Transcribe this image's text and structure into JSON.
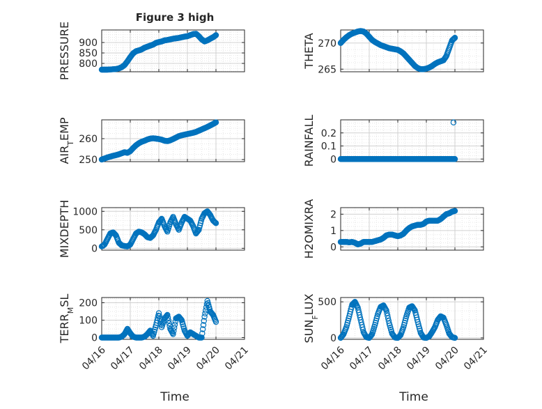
{
  "figure": {
    "title": "Figure 3 high",
    "xlabel": "Time"
  },
  "style": {
    "marker_color": "#0072BD",
    "axis_color": "#262626",
    "grid_color": "#d9d9d9",
    "background": "#ffffff"
  },
  "x_axis": {
    "tick_labels": [
      "04/16",
      "04/17",
      "04/18",
      "04/19",
      "04/20",
      "04/21"
    ],
    "tick_days": [
      0,
      1,
      2,
      3,
      4,
      5
    ],
    "range_days": [
      0,
      5
    ],
    "data_span_days": [
      0,
      4
    ]
  },
  "chart_data": [
    {
      "type": "scatter",
      "title": "Figure 3 high",
      "ylabel": "PRESSURE",
      "ylim": [
        760,
        960
      ],
      "yticks": [
        800,
        850,
        900
      ],
      "grid": true,
      "series": [
        {
          "x": [
            0,
            0.1,
            0.2,
            0.3,
            0.4,
            0.5,
            0.6,
            0.7,
            0.8,
            0.9,
            1.0,
            1.1,
            1.2,
            1.3,
            1.4,
            1.5,
            1.6,
            1.7,
            1.8,
            1.9,
            2.0,
            2.1,
            2.2,
            2.3,
            2.4,
            2.5,
            2.6,
            2.7,
            2.8,
            2.9,
            3.0,
            3.1,
            3.2,
            3.3,
            3.4,
            3.5,
            3.6,
            3.7,
            3.8,
            3.9,
            4.0
          ],
          "y": [
            770,
            770,
            770,
            771,
            772,
            773,
            776,
            782,
            792,
            810,
            830,
            848,
            858,
            862,
            867,
            875,
            880,
            885,
            890,
            898,
            902,
            905,
            910,
            912,
            915,
            918,
            920,
            922,
            925,
            928,
            930,
            935,
            940,
            942,
            930,
            915,
            905,
            910,
            918,
            925,
            935
          ]
        }
      ]
    },
    {
      "type": "scatter",
      "ylabel": "THETA",
      "ylim": [
        264.5,
        272.5
      ],
      "yticks": [
        265,
        270
      ],
      "grid": true,
      "series": [
        {
          "x": [
            0,
            0.1,
            0.2,
            0.3,
            0.4,
            0.5,
            0.6,
            0.7,
            0.8,
            0.9,
            1.0,
            1.1,
            1.2,
            1.3,
            1.4,
            1.5,
            1.6,
            1.7,
            1.8,
            1.9,
            2.0,
            2.1,
            2.2,
            2.3,
            2.4,
            2.5,
            2.6,
            2.7,
            2.8,
            2.9,
            3.0,
            3.1,
            3.2,
            3.3,
            3.4,
            3.5,
            3.6,
            3.7,
            3.8,
            3.9,
            4.0
          ],
          "y": [
            270.0,
            270.6,
            271.1,
            271.5,
            271.8,
            272.0,
            272.2,
            272.3,
            272.2,
            271.8,
            271.2,
            270.6,
            270.2,
            269.9,
            269.6,
            269.4,
            269.2,
            269.0,
            268.9,
            268.8,
            268.7,
            268.4,
            268.0,
            267.4,
            266.8,
            266.2,
            265.6,
            265.2,
            265.0,
            265.0,
            265.1,
            265.3,
            265.6,
            266.0,
            266.3,
            266.5,
            266.7,
            267.5,
            269.0,
            270.5,
            271.0
          ]
        }
      ]
    },
    {
      "type": "scatter",
      "ylabel": "AIR_TEMP",
      "ylim": [
        249,
        269
      ],
      "yticks": [
        250,
        260
      ],
      "grid": true,
      "series": [
        {
          "x": [
            0,
            0.1,
            0.2,
            0.3,
            0.4,
            0.5,
            0.6,
            0.7,
            0.8,
            0.9,
            1.0,
            1.1,
            1.2,
            1.3,
            1.4,
            1.5,
            1.6,
            1.7,
            1.8,
            1.9,
            2.0,
            2.1,
            2.2,
            2.3,
            2.4,
            2.5,
            2.6,
            2.7,
            2.8,
            2.9,
            3.0,
            3.1,
            3.2,
            3.3,
            3.4,
            3.5,
            3.6,
            3.7,
            3.8,
            3.9,
            4.0
          ],
          "y": [
            250.0,
            250.5,
            251.0,
            251.4,
            251.8,
            252.1,
            252.5,
            253.0,
            253.5,
            253.2,
            254.0,
            255.5,
            256.8,
            257.8,
            258.5,
            259.0,
            259.6,
            260.0,
            260.2,
            260.0,
            259.8,
            259.5,
            259.0,
            258.8,
            259.2,
            259.8,
            260.5,
            261.2,
            261.6,
            261.9,
            262.2,
            262.5,
            262.8,
            263.2,
            263.8,
            264.4,
            265.0,
            265.6,
            266.3,
            267.0,
            267.8
          ]
        }
      ]
    },
    {
      "type": "scatter",
      "ylabel": "RAINFALL",
      "ylim": [
        -0.02,
        0.3
      ],
      "yticks": [
        0,
        0.1,
        0.2
      ],
      "ytick_labels": [
        "0",
        "0.1",
        "0.2"
      ],
      "grid": true,
      "series": [
        {
          "x": [
            0,
            0.1,
            0.2,
            0.3,
            0.4,
            0.5,
            0.6,
            0.7,
            0.8,
            0.9,
            1.0,
            1.1,
            1.2,
            1.3,
            1.4,
            1.5,
            1.6,
            1.7,
            1.8,
            1.9,
            2.0,
            2.1,
            2.2,
            2.3,
            2.4,
            2.5,
            2.6,
            2.7,
            2.8,
            2.9,
            3.0,
            3.1,
            3.2,
            3.3,
            3.4,
            3.5,
            3.6,
            3.7,
            3.8,
            3.9,
            4.0,
            3.95
          ],
          "y": [
            0,
            0,
            0,
            0,
            0,
            0,
            0,
            0,
            0,
            0,
            0,
            0,
            0,
            0,
            0,
            0,
            0,
            0,
            0,
            0,
            0,
            0,
            0,
            0,
            0,
            0,
            0,
            0,
            0,
            0,
            0,
            0,
            0,
            0,
            0,
            0,
            0,
            0,
            0,
            0,
            0,
            0.28
          ]
        }
      ]
    },
    {
      "type": "scatter",
      "ylabel": "MIXDEPTH",
      "ylim": [
        -50,
        1100
      ],
      "yticks": [
        0,
        500,
        1000
      ],
      "grid": true,
      "series": [
        {
          "x": [
            0,
            0.1,
            0.2,
            0.3,
            0.4,
            0.5,
            0.6,
            0.7,
            0.8,
            0.9,
            1.0,
            1.1,
            1.2,
            1.3,
            1.4,
            1.5,
            1.6,
            1.7,
            1.8,
            1.9,
            2.0,
            2.1,
            2.2,
            2.3,
            2.4,
            2.5,
            2.6,
            2.7,
            2.8,
            2.9,
            3.0,
            3.1,
            3.2,
            3.3,
            3.4,
            3.5,
            3.6,
            3.7,
            3.8,
            3.9,
            4.0
          ],
          "y": [
            50,
            100,
            250,
            400,
            430,
            350,
            150,
            80,
            60,
            50,
            100,
            250,
            400,
            450,
            430,
            380,
            300,
            280,
            350,
            500,
            700,
            800,
            600,
            450,
            700,
            850,
            650,
            500,
            700,
            850,
            800,
            750,
            600,
            400,
            500,
            800,
            950,
            1000,
            900,
            750,
            680
          ]
        }
      ]
    },
    {
      "type": "scatter",
      "ylabel": "H2OMIXRA",
      "ylim": [
        -0.2,
        2.4
      ],
      "yticks": [
        0,
        1,
        2
      ],
      "grid": true,
      "series": [
        {
          "x": [
            0,
            0.1,
            0.2,
            0.3,
            0.4,
            0.5,
            0.6,
            0.7,
            0.8,
            0.9,
            1.0,
            1.1,
            1.2,
            1.3,
            1.4,
            1.5,
            1.6,
            1.7,
            1.8,
            1.9,
            2.0,
            2.1,
            2.2,
            2.3,
            2.4,
            2.5,
            2.6,
            2.7,
            2.8,
            2.9,
            3.0,
            3.1,
            3.2,
            3.3,
            3.4,
            3.5,
            3.6,
            3.7,
            3.8,
            3.9,
            4.0
          ],
          "y": [
            0.3,
            0.3,
            0.3,
            0.28,
            0.3,
            0.25,
            0.15,
            0.2,
            0.3,
            0.3,
            0.3,
            0.3,
            0.35,
            0.4,
            0.45,
            0.55,
            0.7,
            0.75,
            0.75,
            0.7,
            0.65,
            0.7,
            0.8,
            1.0,
            1.15,
            1.25,
            1.3,
            1.35,
            1.35,
            1.4,
            1.55,
            1.6,
            1.6,
            1.6,
            1.6,
            1.7,
            1.85,
            2.0,
            2.05,
            2.15,
            2.2
          ]
        }
      ]
    },
    {
      "type": "scatter",
      "ylabel": "TERR_MSL",
      "ylim": [
        -10,
        230
      ],
      "yticks": [
        0,
        100,
        200
      ],
      "grid": true,
      "series": [
        {
          "x": [
            0,
            0.1,
            0.2,
            0.3,
            0.4,
            0.5,
            0.6,
            0.7,
            0.8,
            0.9,
            1.0,
            1.1,
            1.2,
            1.3,
            1.4,
            1.5,
            1.6,
            1.7,
            1.8,
            1.9,
            2.0,
            2.1,
            2.2,
            2.3,
            2.4,
            2.5,
            2.6,
            2.7,
            2.8,
            2.9,
            3.0,
            3.1,
            3.2,
            3.3,
            3.4,
            3.5,
            3.6,
            3.7,
            3.8,
            3.9,
            4.0
          ],
          "y": [
            0,
            0,
            0,
            0,
            0,
            0,
            0,
            5,
            20,
            50,
            25,
            5,
            0,
            0,
            0,
            5,
            20,
            40,
            10,
            70,
            140,
            60,
            110,
            130,
            50,
            20,
            110,
            120,
            100,
            40,
            10,
            30,
            20,
            10,
            0,
            0,
            120,
            210,
            150,
            130,
            90
          ]
        }
      ]
    },
    {
      "type": "scatter",
      "ylabel": "SUN_FLUX",
      "ylim": [
        -20,
        560
      ],
      "yticks": [
        0,
        500
      ],
      "grid": true,
      "series": [
        {
          "x": [
            0,
            0.1,
            0.2,
            0.3,
            0.4,
            0.5,
            0.6,
            0.7,
            0.8,
            0.9,
            1.0,
            1.1,
            1.2,
            1.3,
            1.4,
            1.5,
            1.6,
            1.7,
            1.8,
            1.9,
            2.0,
            2.1,
            2.2,
            2.3,
            2.4,
            2.5,
            2.6,
            2.7,
            2.8,
            2.9,
            3.0,
            3.1,
            3.2,
            3.3,
            3.4,
            3.5,
            3.6,
            3.7,
            3.8,
            3.9,
            4.0
          ],
          "y": [
            0,
            50,
            150,
            300,
            460,
            500,
            420,
            250,
            80,
            10,
            0,
            50,
            180,
            330,
            430,
            450,
            380,
            200,
            60,
            5,
            0,
            40,
            150,
            300,
            420,
            440,
            380,
            220,
            70,
            5,
            0,
            20,
            80,
            150,
            250,
            300,
            280,
            180,
            60,
            10,
            0
          ]
        }
      ]
    }
  ]
}
